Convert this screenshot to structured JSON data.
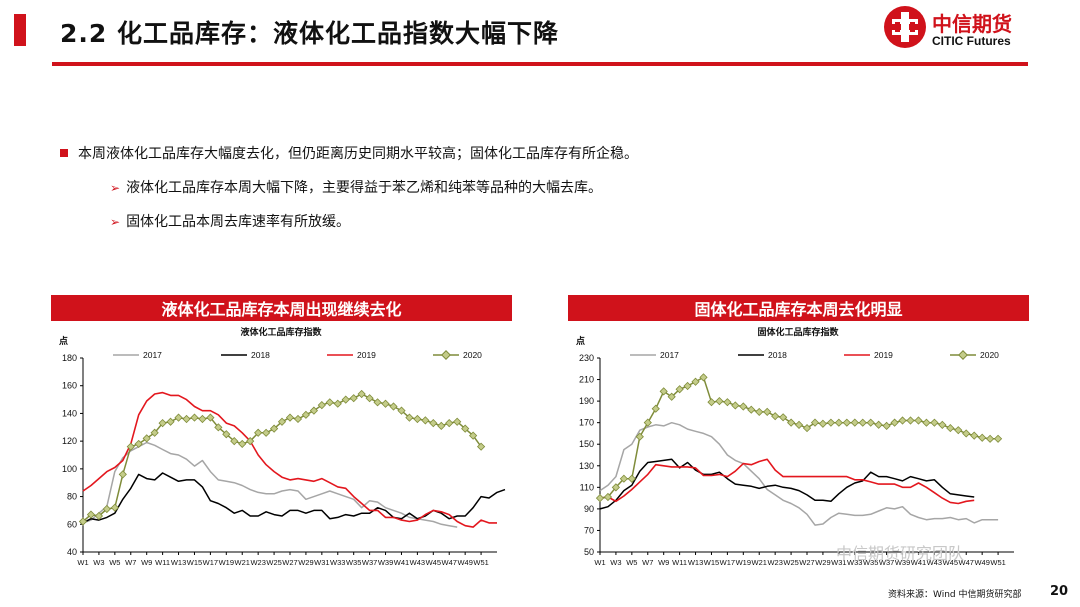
{
  "header": {
    "title": "2.2 化工品库存：液体化工品指数大幅下降",
    "brand_cn": "中信期货",
    "brand_en": "CITIC Futures"
  },
  "bullets": {
    "main": "本周液体化工品库存大幅度去化，但仍距离历史同期水平较高；固体化工品库存有所企稳。",
    "sub1": "液体化工品库存本周大幅下降，主要得益于苯乙烯和纯苯等品种的大幅去库。",
    "sub2": "固体化工品本周去库速率有所放缓。"
  },
  "panels": {
    "left_header": "液体化工品库存本周出现继续去化",
    "right_header": "固体化工品库存本周去化明显"
  },
  "footer": {
    "source": "资料来源：Wind 中信期货研究部",
    "page": "20",
    "watermark": "中信期货研究团队"
  },
  "colors": {
    "accent": "#d0121b",
    "s2017": "#a6a6a6",
    "s2018": "#000000",
    "s2019": "#e3171e",
    "s2020": "#7f8c3a",
    "s2020_marker": "#c4cc8a"
  },
  "chart_data": [
    {
      "type": "line",
      "title": "液体化工品库存指数",
      "ylabel": "点",
      "ylim": [
        40,
        180
      ],
      "yticks": [
        40,
        60,
        80,
        100,
        120,
        140,
        160,
        180
      ],
      "x_tick_labels": [
        "W1",
        "W3",
        "W5",
        "W7",
        "W9",
        "W11",
        "W13",
        "W15",
        "W17",
        "W19",
        "W21",
        "W23",
        "W25",
        "W27",
        "W29",
        "W31",
        "W33",
        "W35",
        "W37",
        "W39",
        "W41",
        "W43",
        "W45",
        "W47",
        "W49",
        "W51"
      ],
      "series": [
        {
          "name": "2017",
          "values": [
            61,
            63,
            68,
            73,
            98,
            108,
            113,
            116,
            119,
            117,
            114,
            111,
            110,
            107,
            102,
            106,
            98,
            92,
            91,
            90,
            88,
            85,
            83,
            82,
            82,
            84,
            85,
            84,
            78,
            80,
            82,
            84,
            82,
            80,
            78,
            72,
            77,
            76,
            72,
            70,
            68,
            65,
            64,
            63,
            62,
            60,
            59,
            58
          ]
        },
        {
          "name": "2018",
          "values": [
            61,
            64,
            63,
            65,
            68,
            78,
            86,
            96,
            93,
            92,
            97,
            94,
            91,
            92,
            92,
            87,
            77,
            75,
            72,
            68,
            70,
            66,
            66,
            69,
            67,
            66,
            70,
            70,
            68,
            70,
            70,
            64,
            65,
            67,
            66,
            68,
            68,
            72,
            70,
            65,
            64,
            68,
            64,
            66,
            70,
            68,
            64,
            66,
            66,
            72,
            80,
            79,
            83,
            85
          ]
        },
        {
          "name": "2019",
          "values": [
            84,
            88,
            93,
            98,
            101,
            106,
            118,
            139,
            149,
            154,
            155,
            153,
            153,
            150,
            145,
            142,
            142,
            139,
            133,
            131,
            126,
            120,
            110,
            103,
            98,
            94,
            92,
            93,
            92,
            91,
            93,
            90,
            87,
            86,
            80,
            75,
            70,
            70,
            65,
            65,
            63,
            62,
            63,
            67,
            70,
            69,
            67,
            62,
            59,
            58,
            63,
            61,
            61
          ]
        },
        {
          "name": "2020",
          "values": [
            62,
            67,
            66,
            71,
            72,
            96,
            116,
            118,
            122,
            126,
            133,
            134,
            137,
            136,
            137,
            136,
            137,
            130,
            125,
            120,
            118,
            120,
            126,
            126,
            129,
            134,
            137,
            136,
            139,
            142,
            146,
            148,
            147,
            150,
            151,
            154,
            151,
            148,
            147,
            145,
            142,
            137,
            136,
            135,
            133,
            131,
            133,
            134,
            129,
            124,
            116
          ]
        }
      ]
    },
    {
      "type": "line",
      "title": "固体化工品库存指数",
      "ylabel": "点",
      "ylim": [
        50,
        230
      ],
      "yticks": [
        50,
        70,
        90,
        110,
        130,
        150,
        170,
        190,
        210,
        230
      ],
      "x_tick_labels": [
        "W1",
        "W3",
        "W5",
        "W7",
        "W9",
        "W11",
        "W13",
        "W15",
        "W17",
        "W19",
        "W21",
        "W23",
        "W25",
        "W27",
        "W29",
        "W31",
        "W33",
        "W35",
        "W37",
        "W39",
        "W41",
        "W43",
        "W45",
        "W47",
        "W49",
        "W51"
      ],
      "series": [
        {
          "name": "2017",
          "values": [
            107,
            112,
            120,
            145,
            150,
            163,
            166,
            168,
            167,
            170,
            168,
            164,
            162,
            160,
            157,
            150,
            140,
            135,
            132,
            125,
            118,
            108,
            103,
            98,
            95,
            91,
            85,
            75,
            76,
            82,
            86,
            85,
            84,
            84,
            85,
            88,
            91,
            90,
            92,
            85,
            82,
            80,
            81,
            81,
            82,
            80,
            81,
            77,
            80,
            80,
            80
          ]
        },
        {
          "name": "2018",
          "values": [
            90,
            92,
            98,
            107,
            112,
            125,
            133,
            134,
            135,
            136,
            128,
            133,
            126,
            122,
            122,
            124,
            118,
            113,
            112,
            111,
            109,
            111,
            112,
            110,
            109,
            107,
            103,
            98,
            98,
            97,
            104,
            110,
            114,
            116,
            124,
            120,
            120,
            118,
            116,
            120,
            118,
            116,
            117,
            110,
            104,
            103,
            102,
            101
          ]
        },
        {
          "name": "2019",
          "values": [
            100,
            101,
            97,
            102,
            108,
            115,
            122,
            131,
            130,
            129,
            129,
            129,
            128,
            121,
            121,
            122,
            120,
            125,
            132,
            131,
            134,
            136,
            126,
            120,
            120,
            120,
            120,
            120,
            120,
            120,
            120,
            120,
            117,
            117,
            115,
            113,
            113,
            113,
            110,
            110,
            114,
            110,
            105,
            100,
            96,
            95,
            97,
            98
          ]
        },
        {
          "name": "2020",
          "values": [
            100,
            101,
            110,
            118,
            118,
            157,
            170,
            183,
            199,
            194,
            201,
            204,
            208,
            212,
            189,
            190,
            189,
            186,
            185,
            182,
            180,
            180,
            176,
            175,
            170,
            168,
            165,
            170,
            169,
            170,
            170,
            170,
            170,
            170,
            170,
            168,
            167,
            170,
            172,
            172,
            172,
            170,
            170,
            168,
            165,
            163,
            160,
            158,
            156,
            155,
            155
          ]
        }
      ]
    }
  ]
}
